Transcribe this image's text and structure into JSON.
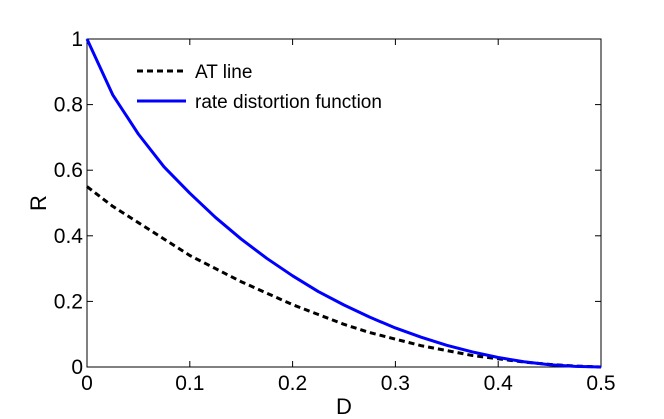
{
  "chart_data": {
    "type": "line",
    "title": "",
    "xlabel": "D",
    "ylabel": "R",
    "xlim": [
      0,
      0.5
    ],
    "ylim": [
      0,
      1
    ],
    "x_ticks": [
      0,
      0.1,
      0.2,
      0.3,
      0.4,
      0.5
    ],
    "y_ticks": [
      0,
      0.2,
      0.4,
      0.6,
      0.8,
      1
    ],
    "x_tick_labels": [
      "0",
      "0.1",
      "0.2",
      "0.3",
      "0.4",
      "0.5"
    ],
    "y_tick_labels": [
      "0",
      "0.2",
      "0.4",
      "0.6",
      "0.8",
      "1"
    ],
    "grid": false,
    "legend_position": "top-left",
    "x": [
      0,
      0.025,
      0.05,
      0.075,
      0.1,
      0.125,
      0.15,
      0.175,
      0.2,
      0.225,
      0.25,
      0.275,
      0.3,
      0.325,
      0.35,
      0.375,
      0.4,
      0.425,
      0.45,
      0.475,
      0.5
    ],
    "series": [
      {
        "name": "AT line",
        "style": "dashed",
        "color": "#000000",
        "values": [
          0.55,
          0.49,
          0.44,
          0.39,
          0.34,
          0.3,
          0.26,
          0.225,
          0.19,
          0.16,
          0.13,
          0.105,
          0.085,
          0.065,
          0.05,
          0.035,
          0.025,
          0.015,
          0.008,
          0.003,
          0.0
        ]
      },
      {
        "name": "rate distortion function",
        "style": "solid",
        "color": "#0000ff",
        "values": [
          1.0,
          0.83,
          0.71,
          0.61,
          0.53,
          0.456,
          0.39,
          0.331,
          0.278,
          0.23,
          0.189,
          0.152,
          0.119,
          0.091,
          0.066,
          0.046,
          0.029,
          0.016,
          0.007,
          0.002,
          0.0
        ]
      }
    ]
  }
}
